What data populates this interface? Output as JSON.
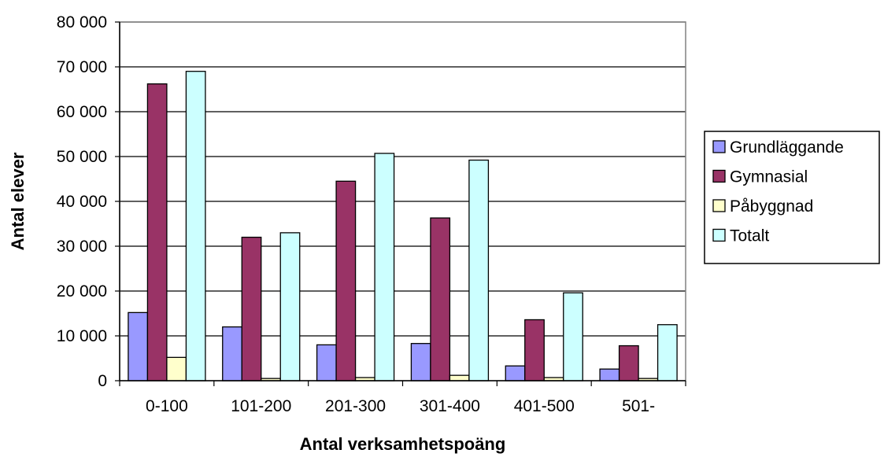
{
  "chart_data": {
    "type": "bar",
    "title": "",
    "xlabel": "Antal verksamhetspoäng",
    "ylabel": "Antal elever",
    "categories": [
      "0-100",
      "101-200",
      "201-300",
      "301-400",
      "401-500",
      "501-"
    ],
    "ylim": [
      0,
      80000
    ],
    "yticks": [
      0,
      10000,
      20000,
      30000,
      40000,
      50000,
      60000,
      70000,
      80000
    ],
    "ytick_labels": [
      "0",
      "10 000",
      "20 000",
      "30 000",
      "40 000",
      "50 000",
      "60 000",
      "70 000",
      "80 000"
    ],
    "grid": true,
    "legend_position": "right",
    "series": [
      {
        "name": "Grundläggande",
        "color": "#9999ff",
        "values": [
          15200,
          12000,
          8000,
          8300,
          3300,
          2600
        ]
      },
      {
        "name": "Gymnasial",
        "color": "#993366",
        "values": [
          66200,
          32000,
          44500,
          36300,
          13600,
          7800
        ]
      },
      {
        "name": "Påbyggnad",
        "color": "#ffffcc",
        "values": [
          5200,
          500,
          700,
          1200,
          700,
          500
        ]
      },
      {
        "name": "Totalt",
        "color": "#ccffff",
        "values": [
          69000,
          33000,
          50700,
          49200,
          19600,
          12500
        ]
      }
    ]
  }
}
